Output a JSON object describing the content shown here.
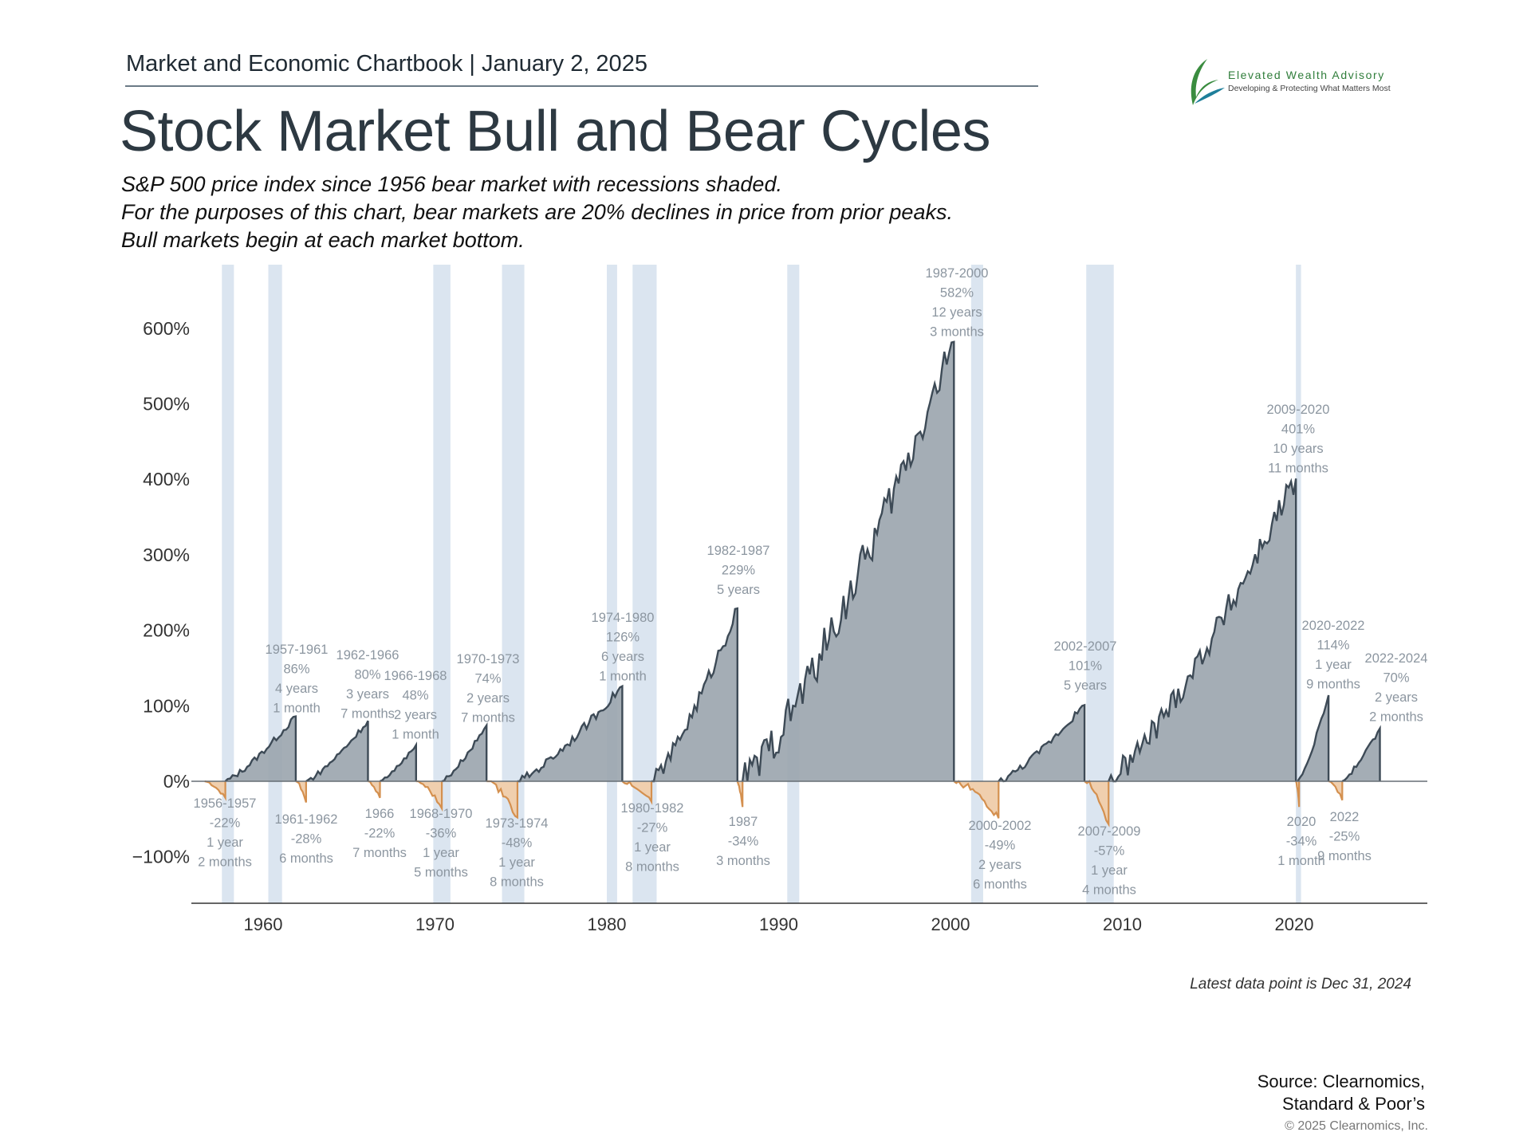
{
  "header": {
    "chartbook": "Market and Economic Chartbook | January 2, 2025",
    "title": "Stock Market Bull and Bear Cycles",
    "subtitle_lines": [
      "S&P 500 price index since 1956 bear market with recessions shaded.",
      "For the purposes of this chart, bear markets are 20% declines in price from prior peaks.",
      "Bull markets begin at each market bottom."
    ]
  },
  "logo": {
    "name": "Elevated Wealth Advisory",
    "tagline": "Developing & Protecting What Matters Most"
  },
  "footer": {
    "latest": "Latest data point is Dec 31, 2024",
    "source_lines": [
      "Source: Clearnomics,",
      "Standard & Poor’s"
    ],
    "copyright": "© 2025 Clearnomics, Inc."
  },
  "colors": {
    "bull": "#3d4a56",
    "bull_fill": "#9aa4ad",
    "bear": "#d4904f",
    "bear_fill": "#f0cfae",
    "recession": "#dbe5f0",
    "axis": "#666e75",
    "annotation": "#8c96a0"
  },
  "chart_data": {
    "type": "area",
    "x_ticks": [
      1960,
      1970,
      1980,
      1990,
      2000,
      2010,
      2020
    ],
    "y_ticks": [
      {
        "value": 600,
        "label": "600%"
      },
      {
        "value": 500,
        "label": "500%"
      },
      {
        "value": 400,
        "label": "400%"
      },
      {
        "value": 300,
        "label": "300%"
      },
      {
        "value": 200,
        "label": "200%"
      },
      {
        "value": 100,
        "label": "100%"
      },
      {
        "value": 0,
        "label": "0%"
      },
      {
        "value": -100,
        "label": "−100%"
      }
    ],
    "xlim": [
      1955.7,
      2028
    ],
    "ylim": [
      -160,
      685
    ],
    "recessions": [
      [
        1957.6,
        1958.3
      ],
      [
        1960.3,
        1961.1
      ],
      [
        1969.9,
        1970.9
      ],
      [
        1973.9,
        1975.2
      ],
      [
        1980.0,
        1980.6
      ],
      [
        1981.5,
        1982.9
      ],
      [
        1990.5,
        1991.2
      ],
      [
        2001.2,
        2001.9
      ],
      [
        2007.9,
        2009.5
      ],
      [
        2020.1,
        2020.4
      ]
    ],
    "bull": [
      {
        "start": 1957.8,
        "end": 1961.9,
        "gain": 86,
        "label": [
          "1957-1961",
          "86%",
          "4 years",
          "1 month"
        ]
      },
      {
        "start": 1962.5,
        "end": 1966.1,
        "gain": 80,
        "label": [
          "1962-1966",
          "80%",
          "3 years",
          "7 months"
        ]
      },
      {
        "start": 1966.8,
        "end": 1968.9,
        "gain": 48,
        "label": [
          "1966-1968",
          "48%",
          "2 years",
          "1 month"
        ]
      },
      {
        "start": 1970.4,
        "end": 1973.0,
        "gain": 74,
        "label": [
          "1970-1973",
          "74%",
          "2 years",
          "7 months"
        ]
      },
      {
        "start": 1974.8,
        "end": 1980.9,
        "gain": 126,
        "label": [
          "1974-1980",
          "126%",
          "6 years",
          "1 month"
        ]
      },
      {
        "start": 1982.6,
        "end": 1987.6,
        "gain": 229,
        "label": [
          "1982-1987",
          "229%",
          "5 years"
        ]
      },
      {
        "start": 1987.9,
        "end": 2000.2,
        "gain": 582,
        "label": [
          "1987-2000",
          "582%",
          "12 years",
          "3 months"
        ]
      },
      {
        "start": 2002.8,
        "end": 2007.8,
        "gain": 101,
        "label": [
          "2002-2007",
          "101%",
          "5 years"
        ]
      },
      {
        "start": 2009.2,
        "end": 2020.1,
        "gain": 401,
        "label": [
          "2009-2020",
          "401%",
          "10 years",
          "11 months"
        ]
      },
      {
        "start": 2020.2,
        "end": 2022.0,
        "gain": 114,
        "label": [
          "2020-2022",
          "114%",
          "1 year",
          "9 months"
        ]
      },
      {
        "start": 2022.8,
        "end": 2024.99,
        "gain": 70,
        "label": [
          "2022-2024",
          "70%",
          "2 years",
          "2 months"
        ]
      }
    ],
    "bear": [
      {
        "start": 1956.6,
        "end": 1957.8,
        "loss": -22,
        "label": [
          "1956-1957",
          "-22%",
          "1 year",
          "2 months"
        ]
      },
      {
        "start": 1961.9,
        "end": 1962.5,
        "loss": -28,
        "label": [
          "1961-1962",
          "-28%",
          "6 months"
        ]
      },
      {
        "start": 1966.1,
        "end": 1966.8,
        "loss": -22,
        "label": [
          "1966",
          "-22%",
          "7 months"
        ]
      },
      {
        "start": 1968.9,
        "end": 1970.4,
        "loss": -36,
        "label": [
          "1968-1970",
          "-36%",
          "1 year",
          "5 months"
        ]
      },
      {
        "start": 1973.0,
        "end": 1974.8,
        "loss": -48,
        "label": [
          "1973-1974",
          "-48%",
          "1 year",
          "8 months"
        ]
      },
      {
        "start": 1980.9,
        "end": 1982.6,
        "loss": -27,
        "label": [
          "1980-1982",
          "-27%",
          "1 year",
          "8 months"
        ]
      },
      {
        "start": 1987.6,
        "end": 1987.9,
        "loss": -34,
        "label": [
          "1987",
          "-34%",
          "3 months"
        ]
      },
      {
        "start": 2000.2,
        "end": 2002.8,
        "loss": -49,
        "label": [
          "2000-2002",
          "-49%",
          "2 years",
          "6 months"
        ]
      },
      {
        "start": 2007.8,
        "end": 2009.2,
        "loss": -57,
        "label": [
          "2007-2009",
          "-57%",
          "1 year",
          "4 months"
        ]
      },
      {
        "start": 2020.1,
        "end": 2020.2,
        "loss": -34,
        "label": [
          "2020",
          "-34%",
          "1 month"
        ]
      },
      {
        "start": 2022.0,
        "end": 2022.8,
        "loss": -25,
        "label": [
          "2022",
          "-25%",
          "9 months"
        ]
      }
    ]
  }
}
